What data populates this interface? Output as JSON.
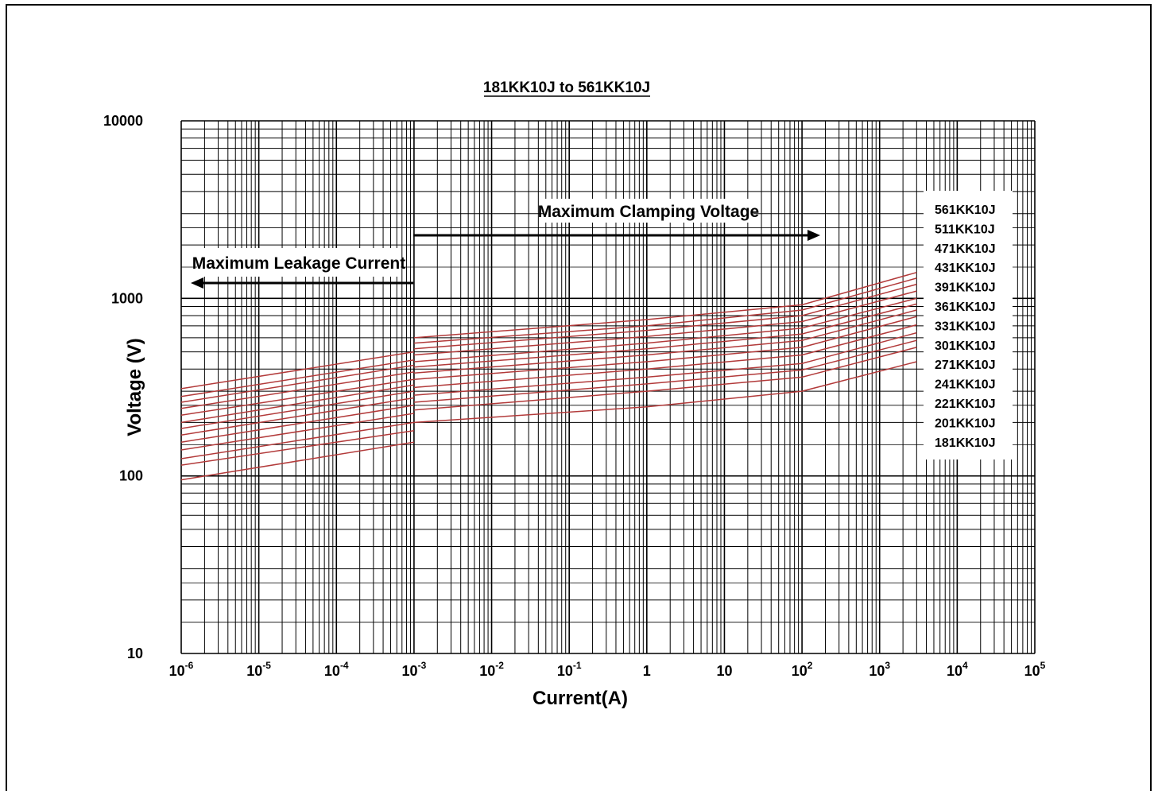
{
  "chart_data": {
    "type": "line",
    "title": "181KK10J to 561KK10J",
    "xlabel": "Current(A)",
    "ylabel": "Voltage (V)",
    "x_scale": "log",
    "y_scale": "log",
    "xlim": [
      1e-06,
      100000
    ],
    "ylim": [
      10,
      10000
    ],
    "grid": true,
    "legend_position": "right",
    "line_color": "#b23a3a",
    "x_tick_labels": [
      {
        "base": "10",
        "exp": "-6"
      },
      {
        "base": "10",
        "exp": "-5"
      },
      {
        "base": "10",
        "exp": "-4"
      },
      {
        "base": "10",
        "exp": "-3"
      },
      {
        "base": "10",
        "exp": "-2"
      },
      {
        "base": "10",
        "exp": "-1"
      },
      {
        "base": "1",
        "exp": ""
      },
      {
        "base": "10",
        "exp": ""
      },
      {
        "base": "10",
        "exp": "2"
      },
      {
        "base": "10",
        "exp": "3"
      },
      {
        "base": "10",
        "exp": "4"
      },
      {
        "base": "10",
        "exp": "5"
      }
    ],
    "y_tick_labels": [
      "10000",
      "1000",
      "100",
      "10"
    ],
    "annotations": {
      "clamping": "Maximum Clamping Voltage",
      "leakage": "Maximum Leakage Current"
    },
    "legend": [
      "561KK10J",
      "511KK10J",
      "471KK10J",
      "431KK10J",
      "391KK10J",
      "361KK10J",
      "331KK10J",
      "301KK10J",
      "271KK10J",
      "241KK10J",
      "221KK10J",
      "201KK10J",
      "181KK10J"
    ],
    "series": [
      {
        "name": "561KK10J",
        "leakage": [
          [
            1e-06,
            310
          ],
          [
            0.001,
            500
          ]
        ],
        "clamping": [
          [
            0.001,
            600
          ],
          [
            1,
            760
          ],
          [
            100,
            920
          ],
          [
            3000,
            1400
          ]
        ]
      },
      {
        "name": "511KK10J",
        "leakage": [
          [
            1e-06,
            280
          ],
          [
            0.001,
            450
          ]
        ],
        "clamping": [
          [
            0.001,
            560
          ],
          [
            1,
            700
          ],
          [
            100,
            860
          ],
          [
            3000,
            1300
          ]
        ]
      },
      {
        "name": "471KK10J",
        "leakage": [
          [
            1e-06,
            260
          ],
          [
            0.001,
            420
          ]
        ],
        "clamping": [
          [
            0.001,
            520
          ],
          [
            1,
            660
          ],
          [
            100,
            800
          ],
          [
            3000,
            1200
          ]
        ]
      },
      {
        "name": "431KK10J",
        "leakage": [
          [
            1e-06,
            240
          ],
          [
            0.001,
            385
          ]
        ],
        "clamping": [
          [
            0.001,
            480
          ],
          [
            1,
            610
          ],
          [
            100,
            740
          ],
          [
            3000,
            1100
          ]
        ]
      },
      {
        "name": "391KK10J",
        "leakage": [
          [
            1e-06,
            220
          ],
          [
            0.001,
            350
          ]
        ],
        "clamping": [
          [
            0.001,
            440
          ],
          [
            1,
            560
          ],
          [
            100,
            680
          ],
          [
            3000,
            1000
          ]
        ]
      },
      {
        "name": "361KK10J",
        "leakage": [
          [
            1e-06,
            200
          ],
          [
            0.001,
            325
          ]
        ],
        "clamping": [
          [
            0.001,
            410
          ],
          [
            1,
            520
          ],
          [
            100,
            630
          ],
          [
            3000,
            930
          ]
        ]
      },
      {
        "name": "331KK10J",
        "leakage": [
          [
            1e-06,
            185
          ],
          [
            0.001,
            300
          ]
        ],
        "clamping": [
          [
            0.001,
            380
          ],
          [
            1,
            480
          ],
          [
            100,
            580
          ],
          [
            3000,
            860
          ]
        ]
      },
      {
        "name": "301KK10J",
        "leakage": [
          [
            1e-06,
            170
          ],
          [
            0.001,
            275
          ]
        ],
        "clamping": [
          [
            0.001,
            350
          ],
          [
            1,
            440
          ],
          [
            100,
            530
          ],
          [
            3000,
            790
          ]
        ]
      },
      {
        "name": "271KK10J",
        "leakage": [
          [
            1e-06,
            155
          ],
          [
            0.001,
            250
          ]
        ],
        "clamping": [
          [
            0.001,
            315
          ],
          [
            1,
            400
          ],
          [
            100,
            480
          ],
          [
            3000,
            710
          ]
        ]
      },
      {
        "name": "241KK10J",
        "leakage": [
          [
            1e-06,
            140
          ],
          [
            0.001,
            225
          ]
        ],
        "clamping": [
          [
            0.001,
            285
          ],
          [
            1,
            360
          ],
          [
            100,
            430
          ],
          [
            3000,
            640
          ]
        ]
      },
      {
        "name": "221KK10J",
        "leakage": [
          [
            1e-06,
            125
          ],
          [
            0.001,
            200
          ]
        ],
        "clamping": [
          [
            0.001,
            260
          ],
          [
            1,
            330
          ],
          [
            100,
            395
          ],
          [
            3000,
            580
          ]
        ]
      },
      {
        "name": "201KK10J",
        "leakage": [
          [
            1e-06,
            115
          ],
          [
            0.001,
            180
          ]
        ],
        "clamping": [
          [
            0.001,
            235
          ],
          [
            1,
            300
          ],
          [
            100,
            360
          ],
          [
            3000,
            530
          ]
        ]
      },
      {
        "name": "181KK10J",
        "leakage": [
          [
            1e-06,
            95
          ],
          [
            0.001,
            155
          ]
        ],
        "clamping": [
          [
            0.001,
            200
          ],
          [
            1,
            245
          ],
          [
            100,
            300
          ],
          [
            3000,
            440
          ]
        ]
      }
    ]
  }
}
